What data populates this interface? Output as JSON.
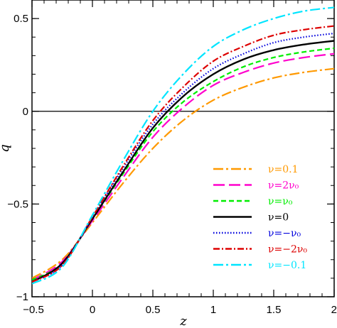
{
  "chart_data": {
    "type": "line",
    "title": "",
    "xlabel": "z",
    "ylabel": "q",
    "xlim": [
      -0.5,
      2.0
    ],
    "ylim": [
      -1.0,
      0.6
    ],
    "grid": false,
    "legend_position": "bottom-right",
    "reference_line_y": 0,
    "x_ticks": [
      -0.5,
      0,
      0.5,
      1,
      1.5,
      2
    ],
    "x_tick_labels": [
      "−0.5",
      "0",
      "0.5",
      "1",
      "1.5",
      "2"
    ],
    "y_ticks": [
      -1,
      -0.5,
      0,
      0.5
    ],
    "y_tick_labels": [
      "−1",
      "−0.5",
      "0",
      "0.5"
    ],
    "x": [
      -0.5,
      -0.25,
      0.0,
      0.25,
      0.5,
      0.75,
      1.0,
      1.25,
      1.5,
      1.75,
      2.0
    ],
    "series": [
      {
        "name": "ν=0.1",
        "color": "#ff9900",
        "dash": "dashdot-long",
        "values": [
          -0.9,
          -0.8,
          -0.6,
          -0.39,
          -0.2,
          -0.05,
          0.06,
          0.13,
          0.18,
          0.21,
          0.23
        ]
      },
      {
        "name": "ν=2ν₀",
        "color": "#ff00cc",
        "dash": "long-dash",
        "values": [
          -0.91,
          -0.81,
          -0.59,
          -0.36,
          -0.14,
          0.02,
          0.14,
          0.21,
          0.26,
          0.29,
          0.31
        ]
      },
      {
        "name": "ν=ν₀",
        "color": "#00ee00",
        "dash": "short-dash",
        "values": [
          -0.91,
          -0.82,
          -0.58,
          -0.34,
          -0.11,
          0.05,
          0.16,
          0.24,
          0.29,
          0.32,
          0.34
        ]
      },
      {
        "name": "ν=0",
        "color": "#000000",
        "dash": "solid",
        "values": [
          -0.92,
          -0.82,
          -0.58,
          -0.33,
          -0.09,
          0.08,
          0.2,
          0.28,
          0.33,
          0.36,
          0.38
        ]
      },
      {
        "name": "ν=−ν₀",
        "color": "#0000dd",
        "dash": "dotted",
        "values": [
          -0.92,
          -0.83,
          -0.57,
          -0.31,
          -0.07,
          0.1,
          0.23,
          0.31,
          0.37,
          0.4,
          0.42
        ]
      },
      {
        "name": "ν=−2ν₀",
        "color": "#dd0000",
        "dash": "dashdot",
        "values": [
          -0.92,
          -0.83,
          -0.57,
          -0.3,
          -0.05,
          0.13,
          0.27,
          0.35,
          0.41,
          0.44,
          0.46
        ]
      },
      {
        "name": "ν=−0.1",
        "color": "#00e5ff",
        "dash": "dashdot-long",
        "values": [
          -0.93,
          -0.84,
          -0.56,
          -0.27,
          0.0,
          0.2,
          0.35,
          0.44,
          0.5,
          0.54,
          0.56
        ]
      }
    ]
  }
}
